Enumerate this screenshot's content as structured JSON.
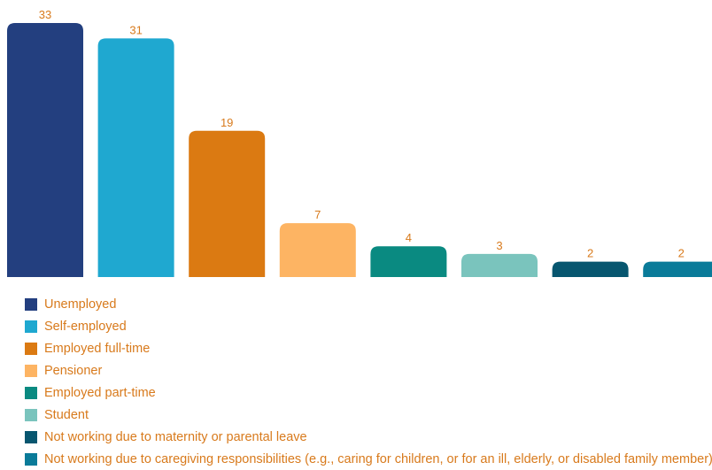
{
  "chart_data": {
    "type": "bar",
    "title": "",
    "xlabel": "",
    "ylabel": "",
    "ylim": [
      0,
      33
    ],
    "grid": false,
    "legend_position": "bottom-left",
    "label_color": "#d87a1c",
    "categories": [
      "Unemployed",
      "Self-employed",
      "Employed full-time",
      "Pensioner",
      "Employed part-time",
      "Student",
      "Not working due to maternity or parental leave",
      "Not working due to caregiving responsibilities (e.g., caring for children, or for an ill, elderly, or disabled family member)"
    ],
    "values": [
      33,
      31,
      19,
      7,
      4,
      3,
      2,
      2
    ],
    "colors": [
      "#233f7f",
      "#1fa8d0",
      "#db7a12",
      "#fdb463",
      "#0a8a81",
      "#7ac4bd",
      "#07566f",
      "#0a7b99"
    ]
  }
}
